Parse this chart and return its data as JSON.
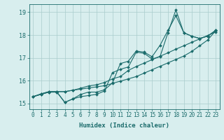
{
  "xlabel": "Humidex (Indice chaleur)",
  "bg_color": "#d8eeee",
  "grid_color": "#aacccc",
  "line_color": "#1a6b6b",
  "xlim": [
    -0.5,
    23.5
  ],
  "ylim": [
    14.75,
    19.35
  ],
  "yticks": [
    15,
    16,
    17,
    18,
    19
  ],
  "xticks": [
    0,
    1,
    2,
    3,
    4,
    5,
    6,
    7,
    8,
    9,
    10,
    11,
    12,
    13,
    14,
    15,
    16,
    17,
    18,
    19,
    20,
    21,
    22,
    23
  ],
  "series": [
    [
      15.3,
      15.4,
      15.5,
      15.5,
      15.05,
      15.2,
      15.3,
      15.35,
      15.4,
      15.55,
      16.35,
      16.5,
      16.6,
      17.25,
      17.2,
      16.95,
      17.05,
      18.1,
      19.1,
      18.1,
      17.95,
      17.85,
      17.95,
      18.2
    ],
    [
      15.3,
      15.4,
      15.5,
      15.5,
      15.05,
      15.2,
      15.4,
      15.5,
      15.5,
      15.6,
      15.9,
      16.75,
      16.85,
      17.3,
      17.25,
      17.05,
      17.55,
      18.2,
      18.85,
      18.1,
      17.95,
      17.85,
      17.95,
      18.2
    ],
    [
      15.3,
      15.42,
      15.52,
      15.52,
      15.52,
      15.58,
      15.67,
      15.77,
      15.82,
      15.92,
      16.08,
      16.18,
      16.45,
      16.62,
      16.77,
      16.92,
      17.07,
      17.22,
      17.38,
      17.53,
      17.68,
      17.83,
      17.98,
      18.13
    ],
    [
      15.3,
      15.42,
      15.52,
      15.52,
      15.52,
      15.58,
      15.63,
      15.68,
      15.73,
      15.78,
      15.88,
      15.98,
      16.08,
      16.18,
      16.33,
      16.48,
      16.63,
      16.78,
      16.93,
      17.08,
      17.28,
      17.53,
      17.78,
      18.18
    ]
  ],
  "marker": "D",
  "markersize": 2.0,
  "linewidth": 0.8,
  "tick_fontsize": 5.5,
  "xlabel_fontsize": 6.5
}
